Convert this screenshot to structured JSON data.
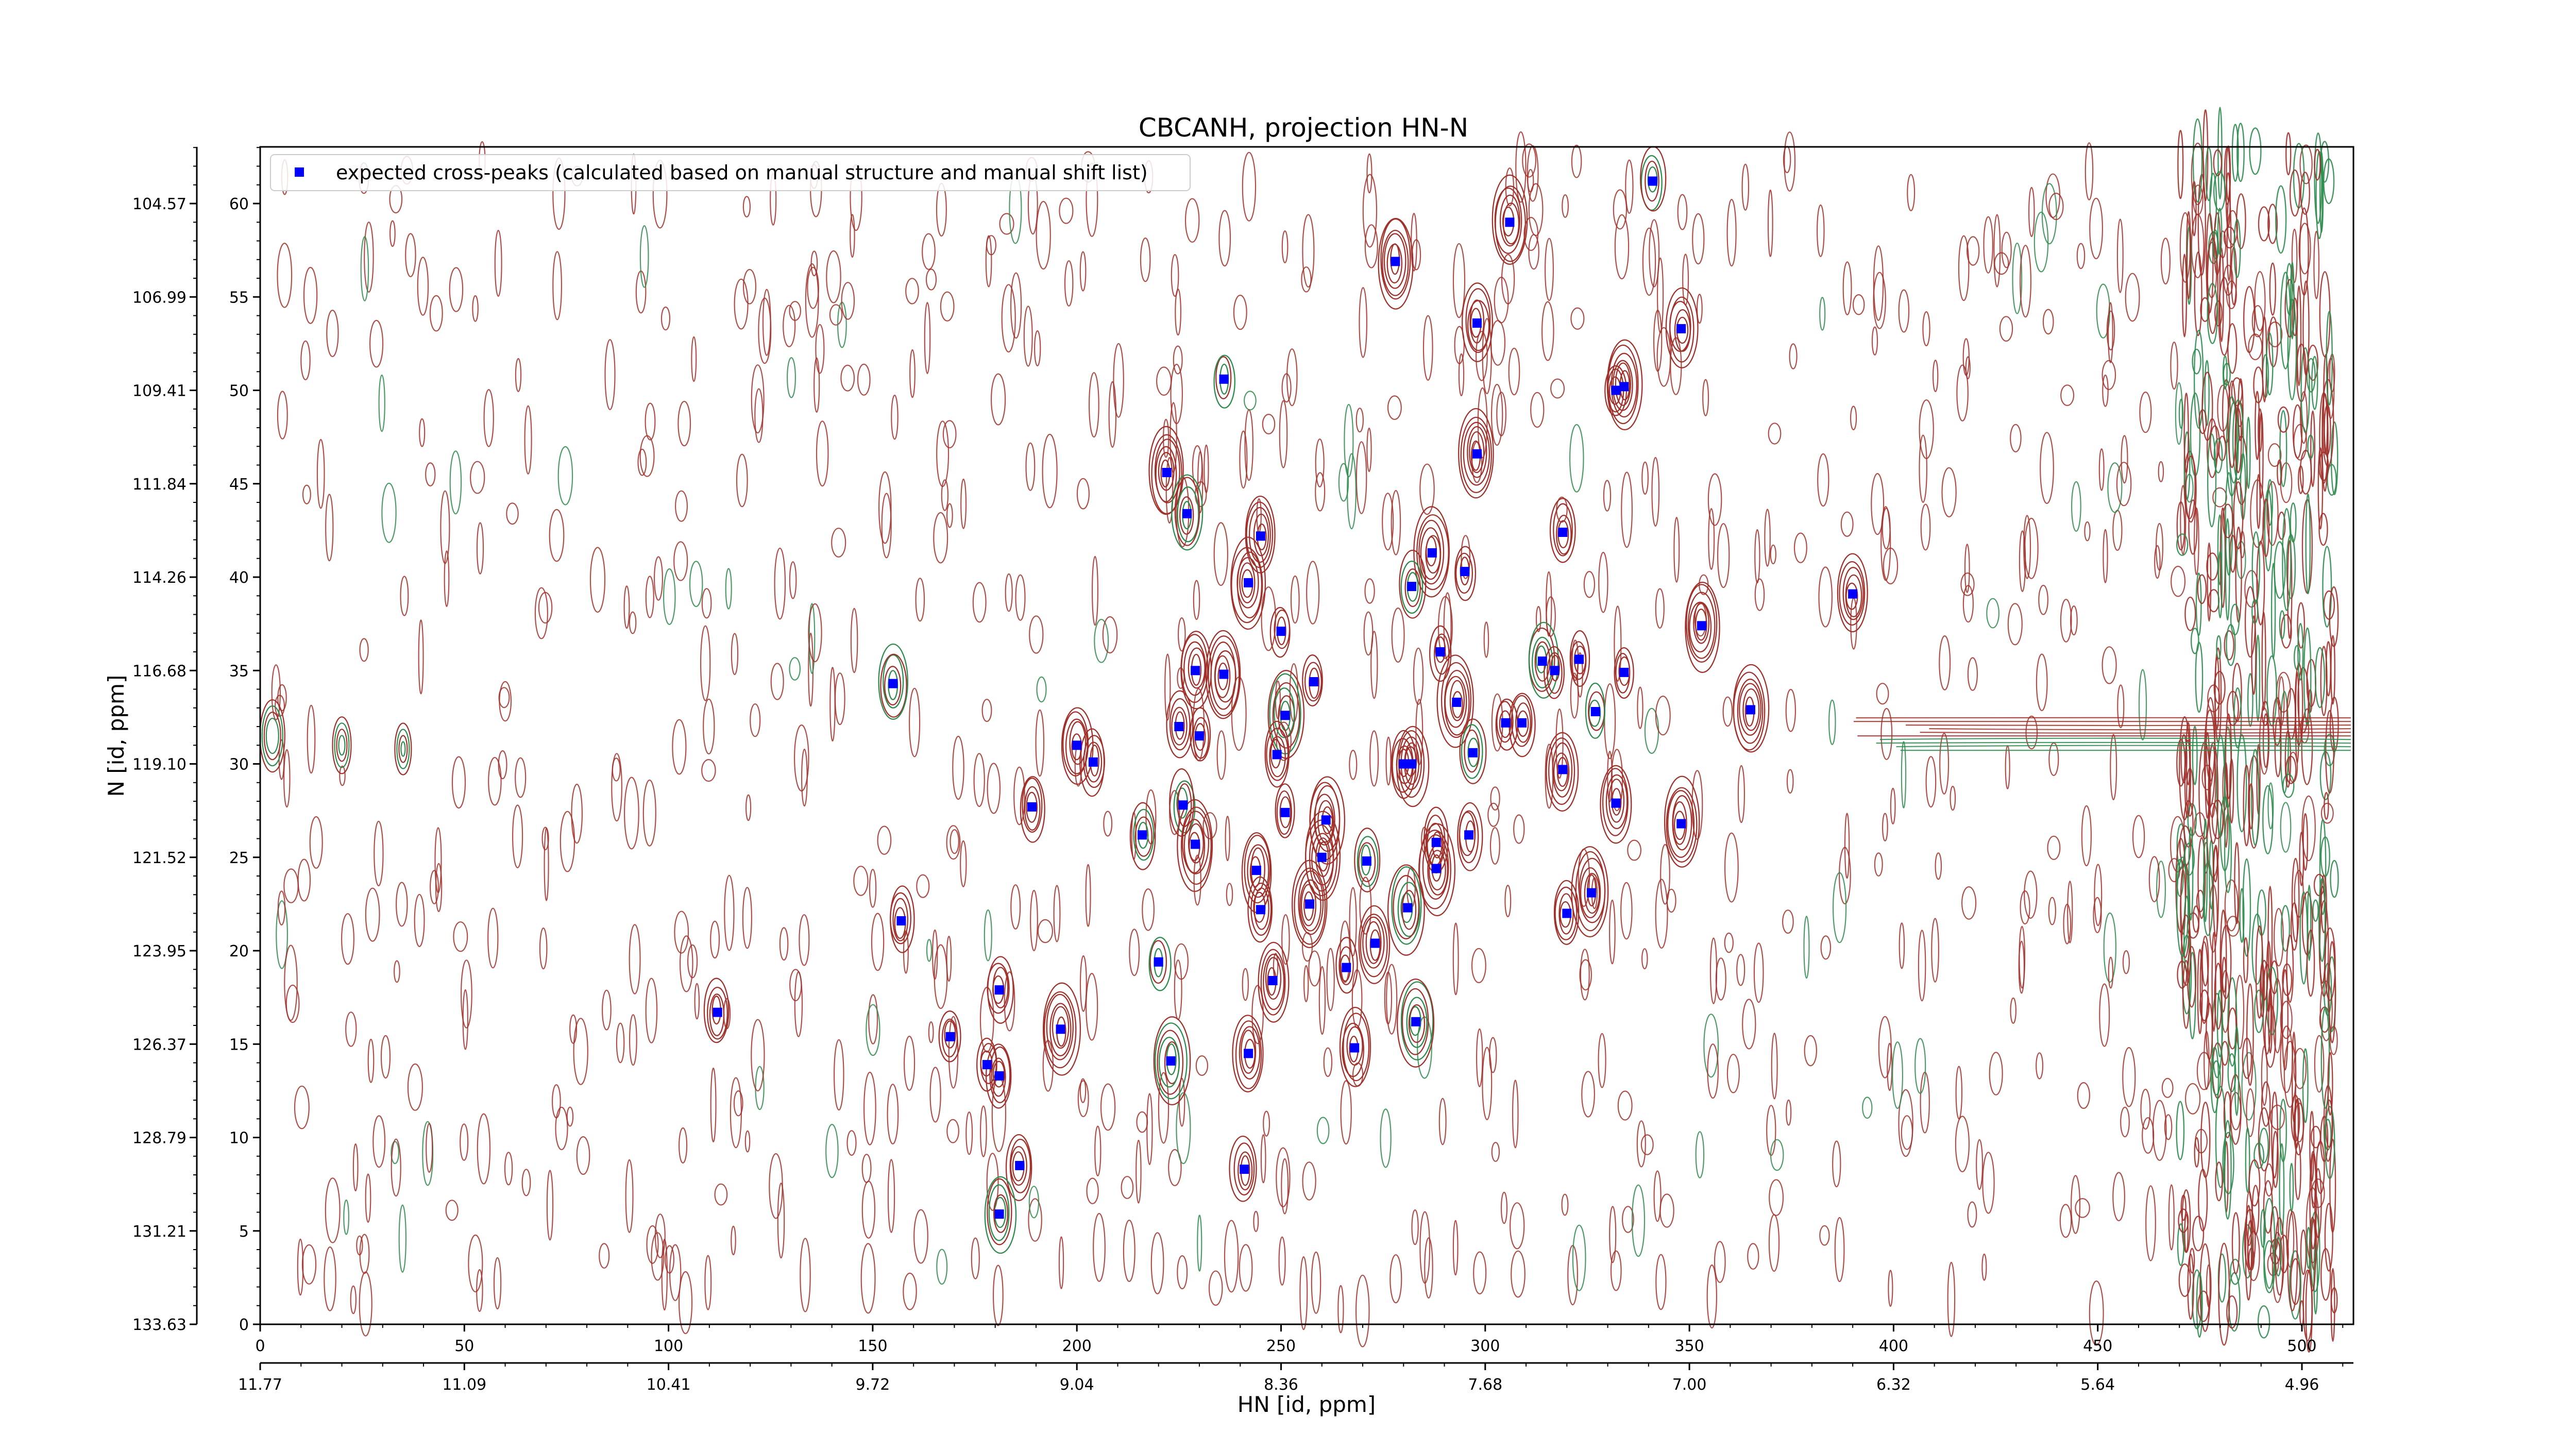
{
  "chart_data": {
    "type": "scatter",
    "title": "CBCANH, projection HN-N",
    "xlabel": "HN [id, ppm]",
    "ylabel": "N [id, ppm]",
    "x_index_range": [
      0,
      512
    ],
    "y_index_range": [
      0,
      63
    ],
    "x_index_ticks": [
      0,
      50,
      100,
      150,
      200,
      250,
      300,
      350,
      400,
      450,
      500
    ],
    "x_ppm_ticks": [
      "11.77",
      "11.09",
      "10.41",
      "9.72",
      "9.04",
      "8.36",
      "7.68",
      "7.00",
      "6.32",
      "5.64",
      "4.96"
    ],
    "y_index_ticks": [
      0,
      5,
      10,
      15,
      20,
      25,
      30,
      35,
      40,
      45,
      50,
      55,
      60
    ],
    "y_ppm_ticks": [
      "133.63",
      "131.21",
      "128.79",
      "126.37",
      "123.95",
      "121.52",
      "119.10",
      "116.68",
      "114.26",
      "111.84",
      "109.41",
      "106.99",
      "104.57"
    ],
    "grid": false,
    "legend_position": "top-left",
    "colors": {
      "expected_peaks": "#0000ff",
      "contour_positive": "#a0302a",
      "contour_negative": "#2e8b4e"
    },
    "contour_series": [
      {
        "color": "#a0302a"
      },
      {
        "color": "#2e8b4e"
      }
    ],
    "series": [
      {
        "name": "expected cross-peaks (calculated based on manual structure and manual shift list)",
        "marker": "square",
        "color": "#0000ff",
        "points": [
          [
            341,
            61.2
          ],
          [
            306,
            59.0
          ],
          [
            278,
            56.9
          ],
          [
            298,
            53.6
          ],
          [
            348,
            53.3
          ],
          [
            236,
            50.6
          ],
          [
            334,
            50.2
          ],
          [
            332,
            50.0
          ],
          [
            298,
            46.6
          ],
          [
            222,
            45.6
          ],
          [
            227,
            43.4
          ],
          [
            319,
            42.4
          ],
          [
            245,
            42.2
          ],
          [
            287,
            41.3
          ],
          [
            295,
            40.3
          ],
          [
            282,
            39.5
          ],
          [
            242,
            39.7
          ],
          [
            390,
            39.1
          ],
          [
            250,
            37.1
          ],
          [
            353,
            37.4
          ],
          [
            155,
            34.3
          ],
          [
            229,
            35.0
          ],
          [
            236,
            34.8
          ],
          [
            258,
            34.4
          ],
          [
            289,
            36.0
          ],
          [
            314,
            35.5
          ],
          [
            317,
            35.0
          ],
          [
            323,
            35.6
          ],
          [
            334,
            34.9
          ],
          [
            293,
            33.3
          ],
          [
            251,
            32.6
          ],
          [
            225,
            32.0
          ],
          [
            230,
            31.5
          ],
          [
            305,
            32.2
          ],
          [
            309,
            32.2
          ],
          [
            327,
            32.8
          ],
          [
            365,
            32.9
          ],
          [
            200,
            31.0
          ],
          [
            204,
            30.1
          ],
          [
            249,
            30.5
          ],
          [
            297,
            30.6
          ],
          [
            280,
            30.0
          ],
          [
            282,
            30.0
          ],
          [
            319,
            29.7
          ],
          [
            189,
            27.7
          ],
          [
            226,
            27.8
          ],
          [
            251,
            27.4
          ],
          [
            261,
            27.0
          ],
          [
            332,
            27.9
          ],
          [
            348,
            26.8
          ],
          [
            216,
            26.2
          ],
          [
            229,
            25.7
          ],
          [
            288,
            25.8
          ],
          [
            296,
            26.2
          ],
          [
            260,
            25.0
          ],
          [
            271,
            24.8
          ],
          [
            244,
            24.3
          ],
          [
            288,
            24.4
          ],
          [
            257,
            22.5
          ],
          [
            245,
            22.2
          ],
          [
            281,
            22.3
          ],
          [
            320,
            22.0
          ],
          [
            326,
            23.1
          ],
          [
            157,
            21.6
          ],
          [
            273,
            20.4
          ],
          [
            220,
            19.4
          ],
          [
            266,
            19.1
          ],
          [
            248,
            18.4
          ],
          [
            181,
            17.9
          ],
          [
            112,
            16.7
          ],
          [
            283,
            16.2
          ],
          [
            196,
            15.8
          ],
          [
            169,
            15.4
          ],
          [
            242,
            14.5
          ],
          [
            178,
            13.9
          ],
          [
            223,
            14.1
          ],
          [
            268,
            14.8
          ],
          [
            181,
            13.3
          ],
          [
            186,
            8.5
          ],
          [
            241,
            8.3
          ],
          [
            181,
            5.9
          ]
        ]
      }
    ]
  }
}
